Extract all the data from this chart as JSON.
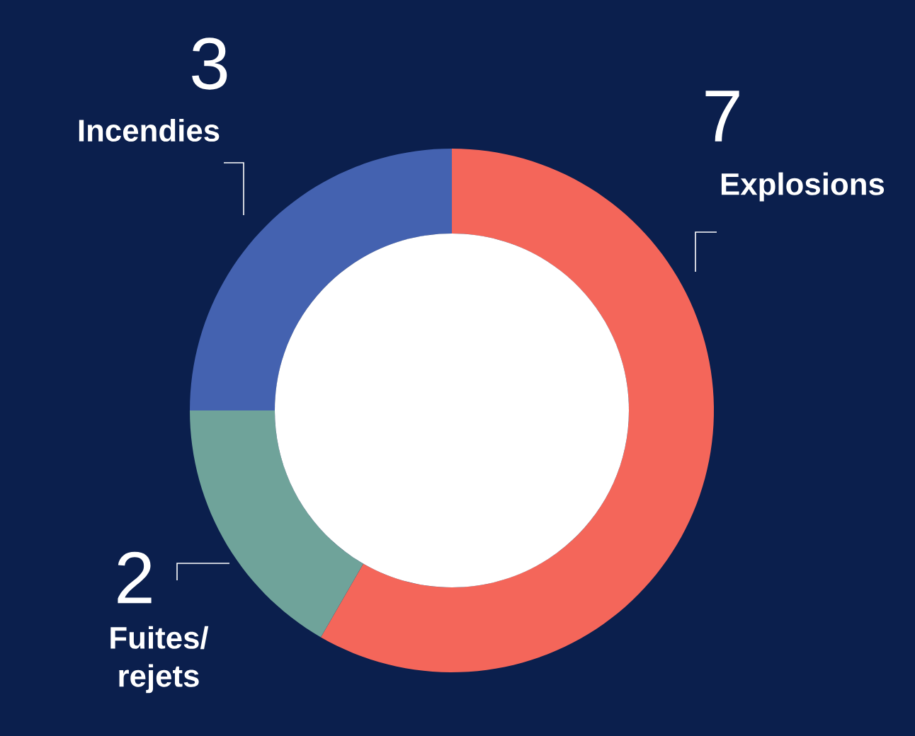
{
  "chart_data": {
    "type": "donut",
    "categories": [
      "Explosions",
      "Fuites/ rejets",
      "Incendies"
    ],
    "values": [
      7,
      2,
      3
    ],
    "colors": [
      "#f4665a",
      "#6fa39a",
      "#4462b0"
    ],
    "data_labels": true
  }
}
